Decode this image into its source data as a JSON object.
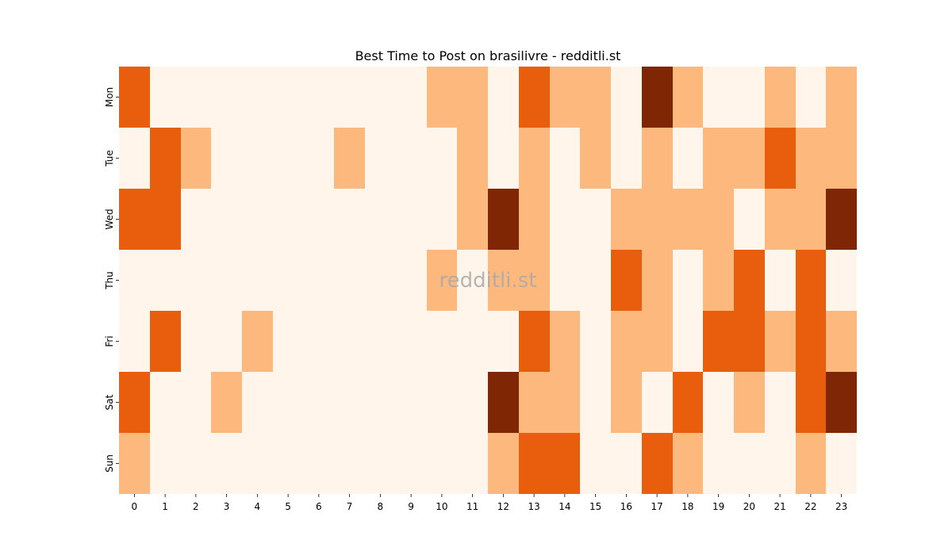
{
  "chart_data": {
    "type": "heatmap",
    "title": "Best Time to Post on brasilivre - redditli.st",
    "watermark": "redditli.st",
    "xlabel": "",
    "ylabel": "",
    "x_categories": [
      "0",
      "1",
      "2",
      "3",
      "4",
      "5",
      "6",
      "7",
      "8",
      "9",
      "10",
      "11",
      "12",
      "13",
      "14",
      "15",
      "16",
      "17",
      "18",
      "19",
      "20",
      "21",
      "22",
      "23"
    ],
    "y_categories": [
      "Mon",
      "Tue",
      "Wed",
      "Thu",
      "Fri",
      "Sat",
      "Sun"
    ],
    "values": [
      [
        2,
        0,
        0,
        0,
        0,
        0,
        0,
        0,
        0,
        0,
        1,
        1,
        0,
        2,
        1,
        1,
        0,
        3,
        1,
        0,
        0,
        1,
        0,
        1
      ],
      [
        0,
        2,
        1,
        0,
        0,
        0,
        0,
        1,
        0,
        0,
        0,
        1,
        0,
        1,
        0,
        1,
        0,
        1,
        0,
        1,
        1,
        2,
        1,
        1
      ],
      [
        2,
        2,
        0,
        0,
        0,
        0,
        0,
        0,
        0,
        0,
        0,
        1,
        3,
        1,
        0,
        0,
        1,
        1,
        1,
        1,
        0,
        1,
        1,
        3
      ],
      [
        0,
        0,
        0,
        0,
        0,
        0,
        0,
        0,
        0,
        0,
        1,
        0,
        1,
        1,
        0,
        0,
        2,
        1,
        0,
        1,
        2,
        0,
        2,
        0
      ],
      [
        0,
        2,
        0,
        0,
        1,
        0,
        0,
        0,
        0,
        0,
        0,
        0,
        0,
        2,
        1,
        0,
        1,
        1,
        0,
        2,
        2,
        1,
        2,
        1
      ],
      [
        2,
        0,
        0,
        1,
        0,
        0,
        0,
        0,
        0,
        0,
        0,
        0,
        3,
        1,
        1,
        0,
        1,
        0,
        2,
        0,
        1,
        0,
        2,
        3
      ],
      [
        1,
        0,
        0,
        0,
        0,
        0,
        0,
        0,
        0,
        0,
        0,
        0,
        1,
        2,
        2,
        0,
        0,
        2,
        1,
        0,
        0,
        0,
        1,
        0
      ]
    ],
    "value_range": [
      0,
      3
    ],
    "colormap": "Oranges",
    "level_colors": [
      "#fff5eb",
      "#fdb97d",
      "#e95e0d",
      "#7f2704"
    ],
    "colorbar": false,
    "grid": false
  }
}
